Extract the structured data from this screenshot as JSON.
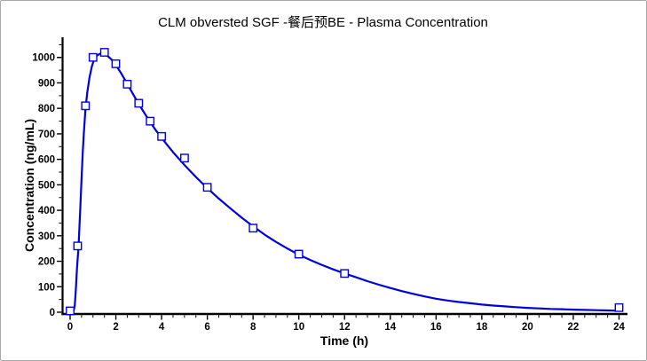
{
  "window": {
    "background": "#ffffff",
    "border_color": "#a8a8a8"
  },
  "chart_data": {
    "type": "line",
    "title": "CLM obversted SGF -餐后预BE - Plasma Concentration",
    "xlabel": "Time (h)",
    "ylabel": "Concentration (ng/mL)",
    "xlim": [
      0,
      24
    ],
    "ylim": [
      0,
      1050
    ],
    "x_ticks": [
      0,
      2,
      4,
      6,
      8,
      10,
      12,
      14,
      16,
      18,
      20,
      22,
      24
    ],
    "x_minor_step": 0.5,
    "y_ticks": [
      0,
      100,
      200,
      300,
      400,
      500,
      600,
      700,
      800,
      900,
      1000
    ],
    "y_minor_step": 50,
    "grid": false,
    "legend_position": "none",
    "colors": {
      "title": "#1414e6",
      "series": "#0000dd",
      "axis": "#000000"
    },
    "series": [
      {
        "name": "observed",
        "style": "scatter",
        "marker": "open-square",
        "x": [
          0,
          0.33,
          0.67,
          1,
          1.5,
          2,
          2.5,
          3,
          3.5,
          4,
          5,
          6,
          8,
          10,
          12,
          24
        ],
        "y": [
          0,
          260,
          810,
          1000,
          1020,
          975,
          895,
          820,
          750,
          690,
          605,
          490,
          330,
          228,
          152,
          18
        ]
      },
      {
        "name": "fitted-curve",
        "style": "line",
        "x": [
          0,
          0.1,
          0.15,
          0.2,
          0.25,
          0.3,
          0.37,
          0.45,
          0.5,
          0.55,
          0.6,
          0.67,
          0.75,
          0.85,
          0.95,
          1.05,
          1.15,
          1.3,
          1.45,
          1.6,
          1.8,
          2,
          2.25,
          2.5,
          2.75,
          3,
          3.25,
          3.5,
          3.75,
          4,
          4.25,
          4.5,
          4.75,
          5,
          5.5,
          6,
          6.5,
          7,
          7.5,
          8,
          8.5,
          9,
          9.5,
          10,
          10.5,
          11,
          11.5,
          12,
          12.5,
          13,
          13.5,
          14,
          14.5,
          15,
          15.5,
          16,
          16.5,
          17,
          17.5,
          18,
          18.5,
          19,
          19.5,
          20,
          20.5,
          21,
          21.5,
          22,
          22.5,
          23,
          23.5,
          24
        ],
        "y": [
          0,
          1,
          5,
          25,
          85,
          170,
          258,
          420,
          525,
          625,
          705,
          798,
          862,
          922,
          965,
          992,
          1006,
          1014,
          1015,
          1009,
          993,
          970,
          935,
          896,
          856,
          817,
          781,
          746,
          714,
          684,
          656,
          628,
          603,
          578,
          531,
          487,
          446,
          408,
          371,
          337,
          305,
          276,
          250,
          226,
          205,
          186,
          168,
          152,
          137,
          122,
          108,
          95,
          83,
          72,
          62,
          53,
          46,
          40,
          35,
          30,
          26,
          23,
          20,
          17,
          15,
          13,
          12,
          10,
          9,
          8,
          7,
          6
        ]
      }
    ]
  }
}
